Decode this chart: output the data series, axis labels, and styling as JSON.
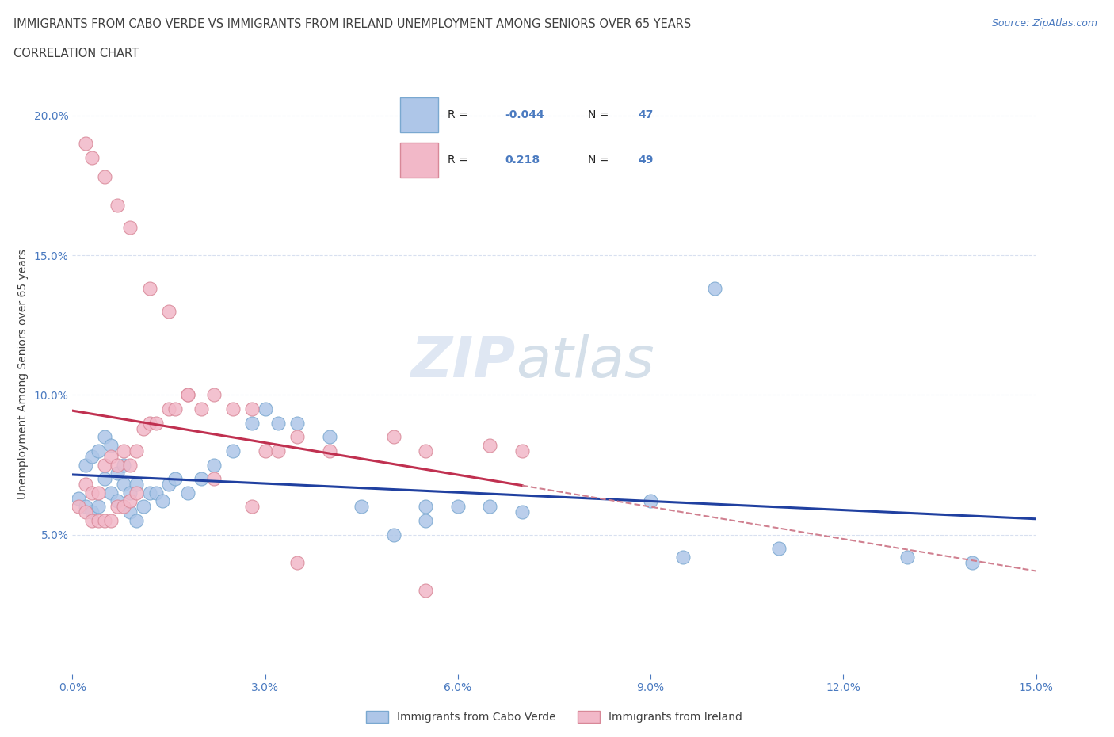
{
  "title_line1": "IMMIGRANTS FROM CABO VERDE VS IMMIGRANTS FROM IRELAND UNEMPLOYMENT AMONG SENIORS OVER 65 YEARS",
  "title_line2": "CORRELATION CHART",
  "source_text": "Source: ZipAtlas.com",
  "watermark_zip": "ZIP",
  "watermark_atlas": "atlas",
  "ylabel": "Unemployment Among Seniors over 65 years",
  "xlim": [
    0.0,
    0.15
  ],
  "ylim": [
    0.0,
    0.215
  ],
  "xticks": [
    0.0,
    0.03,
    0.06,
    0.09,
    0.12,
    0.15
  ],
  "yticks": [
    0.05,
    0.1,
    0.15,
    0.2
  ],
  "ytick_labels": [
    "5.0%",
    "10.0%",
    "15.0%",
    "20.0%"
  ],
  "xtick_labels": [
    "0.0%",
    "3.0%",
    "6.0%",
    "9.0%",
    "12.0%",
    "15.0%"
  ],
  "cabo_verde_color": "#aec6e8",
  "ireland_color": "#f2b8c8",
  "cabo_verde_edge": "#7aa8d0",
  "ireland_edge": "#d88898",
  "cabo_verde_line_color": "#2040a0",
  "ireland_line_color": "#c03050",
  "ireland_dash_color": "#d08090",
  "cabo_verde_R": -0.044,
  "cabo_verde_N": 47,
  "ireland_R": 0.218,
  "ireland_N": 49,
  "legend_label_1": "Immigrants from Cabo Verde",
  "legend_label_2": "Immigrants from Ireland",
  "cabo_verde_scatter_x": [
    0.001,
    0.002,
    0.003,
    0.004,
    0.005,
    0.006,
    0.007,
    0.008,
    0.009,
    0.01,
    0.002,
    0.003,
    0.004,
    0.005,
    0.006,
    0.007,
    0.008,
    0.009,
    0.01,
    0.011,
    0.012,
    0.013,
    0.014,
    0.015,
    0.016,
    0.018,
    0.02,
    0.022,
    0.025,
    0.028,
    0.03,
    0.032,
    0.035,
    0.04,
    0.045,
    0.05,
    0.055,
    0.065,
    0.07,
    0.09,
    0.095,
    0.1,
    0.11,
    0.13,
    0.14,
    0.055,
    0.06
  ],
  "cabo_verde_scatter_y": [
    0.063,
    0.06,
    0.058,
    0.06,
    0.07,
    0.065,
    0.062,
    0.068,
    0.058,
    0.055,
    0.075,
    0.078,
    0.08,
    0.085,
    0.082,
    0.072,
    0.075,
    0.065,
    0.068,
    0.06,
    0.065,
    0.065,
    0.062,
    0.068,
    0.07,
    0.065,
    0.07,
    0.075,
    0.08,
    0.09,
    0.095,
    0.09,
    0.09,
    0.085,
    0.06,
    0.05,
    0.055,
    0.06,
    0.058,
    0.062,
    0.042,
    0.138,
    0.045,
    0.042,
    0.04,
    0.06,
    0.06
  ],
  "ireland_scatter_x": [
    0.001,
    0.002,
    0.003,
    0.004,
    0.005,
    0.006,
    0.007,
    0.008,
    0.009,
    0.01,
    0.002,
    0.003,
    0.004,
    0.005,
    0.006,
    0.007,
    0.008,
    0.009,
    0.01,
    0.011,
    0.012,
    0.013,
    0.015,
    0.016,
    0.018,
    0.02,
    0.022,
    0.025,
    0.028,
    0.03,
    0.032,
    0.035,
    0.04,
    0.05,
    0.055,
    0.065,
    0.07,
    0.002,
    0.003,
    0.005,
    0.007,
    0.009,
    0.012,
    0.015,
    0.018,
    0.022,
    0.028,
    0.035,
    0.055
  ],
  "ireland_scatter_y": [
    0.06,
    0.058,
    0.055,
    0.055,
    0.055,
    0.055,
    0.06,
    0.06,
    0.062,
    0.065,
    0.068,
    0.065,
    0.065,
    0.075,
    0.078,
    0.075,
    0.08,
    0.075,
    0.08,
    0.088,
    0.09,
    0.09,
    0.095,
    0.095,
    0.1,
    0.095,
    0.1,
    0.095,
    0.095,
    0.08,
    0.08,
    0.085,
    0.08,
    0.085,
    0.08,
    0.082,
    0.08,
    0.19,
    0.185,
    0.178,
    0.168,
    0.16,
    0.138,
    0.13,
    0.1,
    0.07,
    0.06,
    0.04,
    0.03
  ],
  "title_color": "#404040",
  "axis_color": "#4a7ac0",
  "grid_color": "#d8e0f0",
  "rn_text_color": "#4a7ac0"
}
